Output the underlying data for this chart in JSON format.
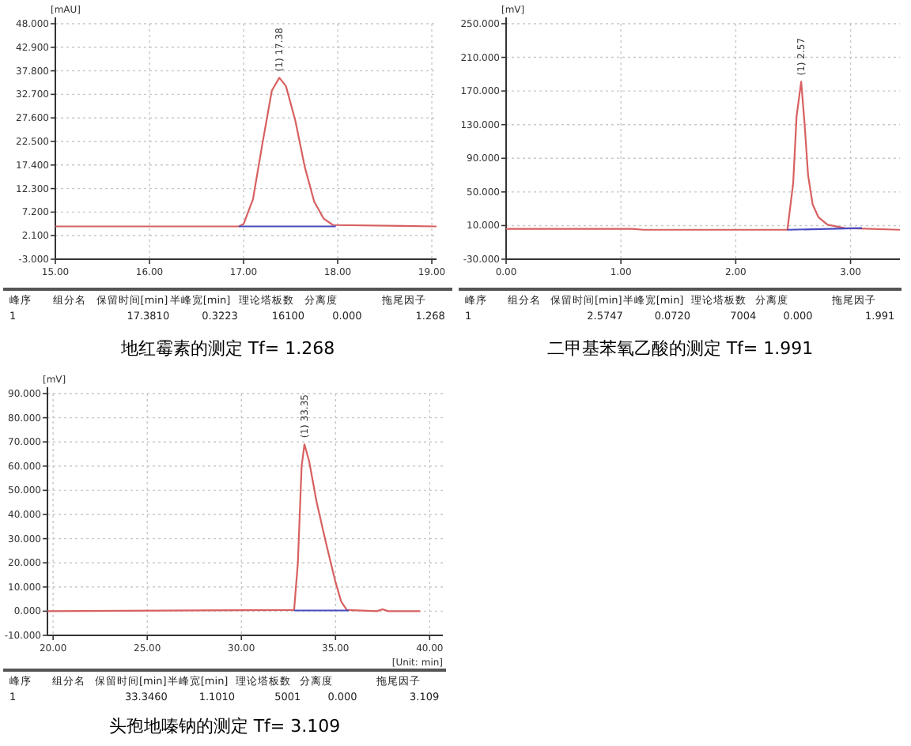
{
  "chart_data": [
    {
      "type": "line",
      "title": "地红霉素的测定  Tf= 1.268",
      "ylabel": "[mAU]",
      "xlim": [
        15,
        19.05
      ],
      "ylim": [
        -3,
        48
      ],
      "xticks": [
        {
          "value": 15,
          "label": "15.00"
        },
        {
          "value": 16,
          "label": "16.00"
        },
        {
          "value": 17,
          "label": "17.00"
        },
        {
          "value": 18,
          "label": "18.00"
        },
        {
          "value": 19,
          "label": "19.00"
        }
      ],
      "yticks": [
        {
          "value": -3,
          "label": "-3.000"
        },
        {
          "value": 2.1,
          "label": "2.100"
        },
        {
          "value": 7.2,
          "label": "7.200"
        },
        {
          "value": 12.3,
          "label": "12.300"
        },
        {
          "value": 17.4,
          "label": "17.400"
        },
        {
          "value": 22.5,
          "label": "22.500"
        },
        {
          "value": 27.6,
          "label": "27.600"
        },
        {
          "value": 32.7,
          "label": "32.700"
        },
        {
          "value": 37.8,
          "label": "37.800"
        },
        {
          "value": 42.9,
          "label": "42.900"
        },
        {
          "value": 48,
          "label": "48.000"
        }
      ],
      "grid": true,
      "series": [
        {
          "color": "#d86060",
          "x": [
            15,
            16.95,
            17.0,
            17.1,
            17.2,
            17.3,
            17.38,
            17.45,
            17.55,
            17.65,
            17.75,
            17.85,
            17.95,
            19.05
          ],
          "values": [
            4.1,
            4.1,
            4.6,
            10,
            22,
            33.5,
            36.3,
            34.5,
            27,
            17,
            9.5,
            5.8,
            4.4,
            4.1
          ]
        },
        {
          "color": "#4a4ac0",
          "x": [
            16.95,
            17.98
          ],
          "values": [
            4.1,
            4.1
          ]
        }
      ],
      "annotations": [
        {
          "text": "(1) 17.38",
          "x": 17.38,
          "y": 36.3
        },
        "峰序",
        "组分名",
        "保留时间[min]",
        "半峰宽[min]",
        "理论塔板数",
        "分离度",
        "拖尾因子",
        "1",
        "17.3810",
        "0.3223",
        "16100",
        "0.000",
        "1.268"
      ]
    },
    {
      "type": "line",
      "title": "二甲基苯氧乙酸的测定  Tf= 1.991",
      "ylabel": "[mV]",
      "xlim": [
        0,
        3.43
      ],
      "ylim": [
        -30,
        250
      ],
      "xticks": [
        {
          "value": 0,
          "label": "0.00"
        },
        {
          "value": 1,
          "label": "1.00"
        },
        {
          "value": 2,
          "label": "2.00"
        },
        {
          "value": 3,
          "label": "3.00"
        }
      ],
      "yticks": [
        {
          "value": -30,
          "label": "-30.000"
        },
        {
          "value": 10,
          "label": "10.000"
        },
        {
          "value": 50,
          "label": "50.000"
        },
        {
          "value": 90,
          "label": "90.000"
        },
        {
          "value": 130,
          "label": "130.000"
        },
        {
          "value": 170,
          "label": "170.000"
        },
        {
          "value": 210,
          "label": "210.000"
        },
        {
          "value": 250,
          "label": "250.000"
        }
      ],
      "grid": true,
      "series": [
        {
          "color": "#d86060",
          "x": [
            0,
            1.1,
            1.2,
            2.45,
            2.5,
            2.53,
            2.57,
            2.6,
            2.63,
            2.67,
            2.72,
            2.8,
            2.95,
            3.43
          ],
          "values": [
            6,
            6,
            5,
            5,
            60,
            140,
            181,
            130,
            70,
            35,
            20,
            11,
            7,
            5
          ]
        },
        {
          "color": "#4a4ac0",
          "x": [
            2.45,
            3.1
          ],
          "values": [
            5,
            7
          ]
        }
      ],
      "annotations": [
        {
          "text": "(1) 2.57",
          "x": 2.57,
          "y": 181
        },
        "峰序",
        "组分名",
        "保留时间[min]",
        "半峰宽[min]",
        "理论塔板数",
        "分离度",
        "拖尾因子",
        "1",
        "2.5747",
        "0.0720",
        "7004",
        "0.000",
        "1.991"
      ]
    },
    {
      "type": "line",
      "title": "头孢地嗪钠的测定  Tf= 3.109",
      "ylabel": "[mV]",
      "xlabel": "[Unit: min]",
      "xlim": [
        19.7,
        40.7
      ],
      "ylim": [
        -10,
        90
      ],
      "xticks": [
        {
          "value": 20,
          "label": "20.00"
        },
        {
          "value": 25,
          "label": "25.00"
        },
        {
          "value": 30,
          "label": "30.00"
        },
        {
          "value": 35,
          "label": "35.00"
        },
        {
          "value": 40,
          "label": "40.00"
        }
      ],
      "yticks": [
        {
          "value": -10,
          "label": "-10.000"
        },
        {
          "value": 0,
          "label": "0.000"
        },
        {
          "value": 10,
          "label": "10.000"
        },
        {
          "value": 20,
          "label": "20.000"
        },
        {
          "value": 30,
          "label": "30.000"
        },
        {
          "value": 40,
          "label": "40.000"
        },
        {
          "value": 50,
          "label": "50.000"
        },
        {
          "value": 60,
          "label": "60.000"
        },
        {
          "value": 70,
          "label": "70.000"
        },
        {
          "value": 80,
          "label": "80.000"
        },
        {
          "value": 90,
          "label": "90.000"
        }
      ],
      "grid": true,
      "series": [
        {
          "color": "#d86060",
          "x": [
            19.7,
            32.8,
            33.0,
            33.2,
            33.35,
            33.6,
            34.0,
            34.5,
            35.0,
            35.3,
            35.6,
            37.2,
            37.5,
            37.8,
            39.5
          ],
          "values": [
            0,
            0.5,
            20,
            60,
            69,
            62,
            45,
            28,
            12,
            4,
            0.5,
            0,
            0.8,
            0,
            0
          ]
        },
        {
          "color": "#4a4ac0",
          "x": [
            32.8,
            35.7
          ],
          "values": [
            0.3,
            0.3
          ]
        }
      ],
      "annotations": [
        {
          "text": "(1) 33.35",
          "x": 33.35,
          "y": 69
        },
        "峰序",
        "组分名",
        "保留时间[min]",
        "半峰宽[min]",
        "理论塔板数",
        "分离度",
        "拖尾因子",
        "1",
        "33.3460",
        "1.1010",
        "5001",
        "0.000",
        "3.109"
      ]
    }
  ]
}
